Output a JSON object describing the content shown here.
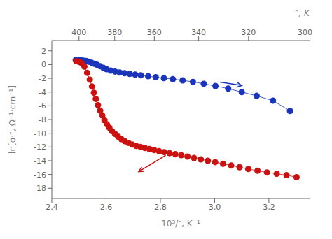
{
  "chart_data": {
    "type": "line",
    "xlabel": "10³/ᵔ, K⁻¹",
    "ylabel": "ln[σ·ᵔ, Ω⁻¹·cm⁻¹]",
    "x2label": "ᵔ, K",
    "xlim": [
      2.4,
      3.35
    ],
    "ylim": [
      -19.5,
      3.5
    ],
    "xticks": [
      {
        "value": 2.4,
        "label": "2,4"
      },
      {
        "value": 2.6,
        "label": "2,6"
      },
      {
        "value": 2.8,
        "label": "2,8"
      },
      {
        "value": 3.0,
        "label": "3,0"
      },
      {
        "value": 3.2,
        "label": "3,2"
      }
    ],
    "x2ticks": [
      {
        "value": 2.5,
        "label": "400"
      },
      {
        "value": 2.631578947368421,
        "label": "380"
      },
      {
        "value": 2.7777777777777777,
        "label": "360"
      },
      {
        "value": 2.9411764705882355,
        "label": "340"
      },
      {
        "value": 3.125,
        "label": "320"
      },
      {
        "value": 3.3333333333333335,
        "label": "300"
      }
    ],
    "yticks": [
      -18,
      -16,
      -14,
      -12,
      -10,
      -8,
      -6,
      -4,
      -2,
      0,
      2
    ],
    "grid": false,
    "series": [
      {
        "color": "#1A34BB",
        "marker": "circle",
        "line_style": "solid",
        "x": [
          2.488,
          2.498,
          2.507,
          2.516,
          2.526,
          2.536,
          2.546,
          2.557,
          2.567,
          2.578,
          2.59,
          2.602,
          2.617,
          2.633,
          2.65,
          2.668,
          2.687,
          2.707,
          2.728,
          2.755,
          2.783,
          2.813,
          2.846,
          2.882,
          2.92,
          2.96,
          3.003,
          3.05,
          3.1,
          3.155,
          3.215,
          3.278
        ],
        "values": [
          0.65,
          0.65,
          0.62,
          0.58,
          0.52,
          0.42,
          0.28,
          0.12,
          -0.05,
          -0.25,
          -0.48,
          -0.68,
          -0.88,
          -1.02,
          -1.15,
          -1.26,
          -1.36,
          -1.46,
          -1.56,
          -1.7,
          -1.84,
          -1.98,
          -2.12,
          -2.3,
          -2.52,
          -2.8,
          -3.12,
          -3.5,
          -4.0,
          -4.55,
          -5.25,
          -6.75
        ]
      },
      {
        "color": "#CC1111",
        "marker": "circle",
        "line_style": "solid",
        "x": [
          2.49,
          2.5,
          2.51,
          2.52,
          2.53,
          2.54,
          2.548,
          2.555,
          2.562,
          2.57,
          2.578,
          2.586,
          2.594,
          2.603,
          2.612,
          2.622,
          2.633,
          2.644,
          2.656,
          2.669,
          2.682,
          2.696,
          2.711,
          2.727,
          2.743,
          2.76,
          2.777,
          2.795,
          2.814,
          2.834,
          2.855,
          2.877,
          2.9,
          2.924,
          2.949,
          2.975,
          3.002,
          3.031,
          3.061,
          3.092,
          3.124,
          3.158,
          3.193,
          3.229,
          3.265,
          3.302
        ],
        "values": [
          0.5,
          0.4,
          0.2,
          -0.3,
          -1.2,
          -2.2,
          -3.2,
          -4.1,
          -5.0,
          -5.9,
          -6.7,
          -7.4,
          -8.1,
          -8.7,
          -9.2,
          -9.7,
          -10.1,
          -10.5,
          -10.85,
          -11.15,
          -11.4,
          -11.65,
          -11.85,
          -12.0,
          -12.15,
          -12.3,
          -12.45,
          -12.6,
          -12.75,
          -12.9,
          -13.05,
          -13.2,
          -13.4,
          -13.6,
          -13.8,
          -14.0,
          -14.2,
          -14.45,
          -14.7,
          -14.95,
          -15.2,
          -15.45,
          -15.7,
          -15.9,
          -16.1,
          -16.4
        ]
      }
    ],
    "arrows": [
      {
        "color": "#1A34BB",
        "x": [
          3.02,
          3.1
        ],
        "y": [
          -2.55,
          -3.05
        ]
      },
      {
        "color": "#CC1111",
        "x": [
          2.82,
          2.72
        ],
        "y": [
          -13.2,
          -15.6
        ]
      }
    ]
  }
}
